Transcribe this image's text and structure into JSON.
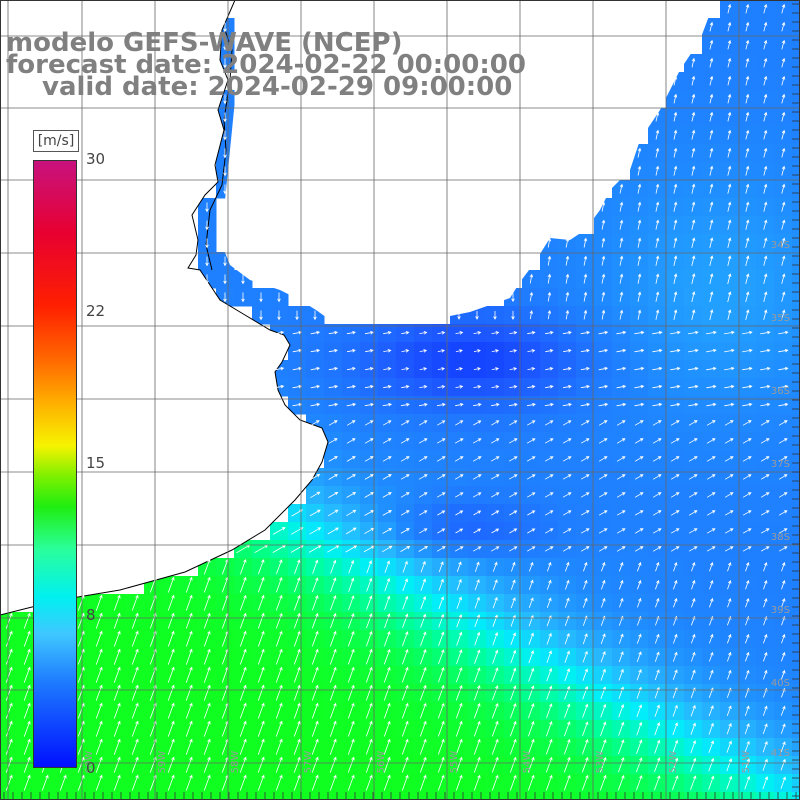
{
  "title": {
    "line1": "modelo GEFS-WAVE (NCEP)",
    "line2": "forecast date: 2024-02-22 00:00:00",
    "line3": "valid date: 2024-02-29 09:00:00"
  },
  "colorbar": {
    "unit": "[m/s]",
    "ticks": [
      "30",
      "22",
      "15",
      "8",
      "0"
    ],
    "min": 0,
    "max": 30
  },
  "map": {
    "type": "wind-speed field with direction arrows",
    "lat_labels": [
      "34S",
      "35S",
      "36S",
      "37S",
      "38S",
      "39S",
      "40S",
      "41S"
    ],
    "lon_labels": [
      "60W",
      "59W",
      "58W",
      "57W",
      "56W",
      "55W",
      "54W",
      "53W",
      "52W",
      "51W"
    ],
    "colors": {
      "land": "#ffffff",
      "coast": "#000000",
      "grid": "#666666",
      "arrow": "#ffffff",
      "label": "#9a9a9a"
    }
  }
}
